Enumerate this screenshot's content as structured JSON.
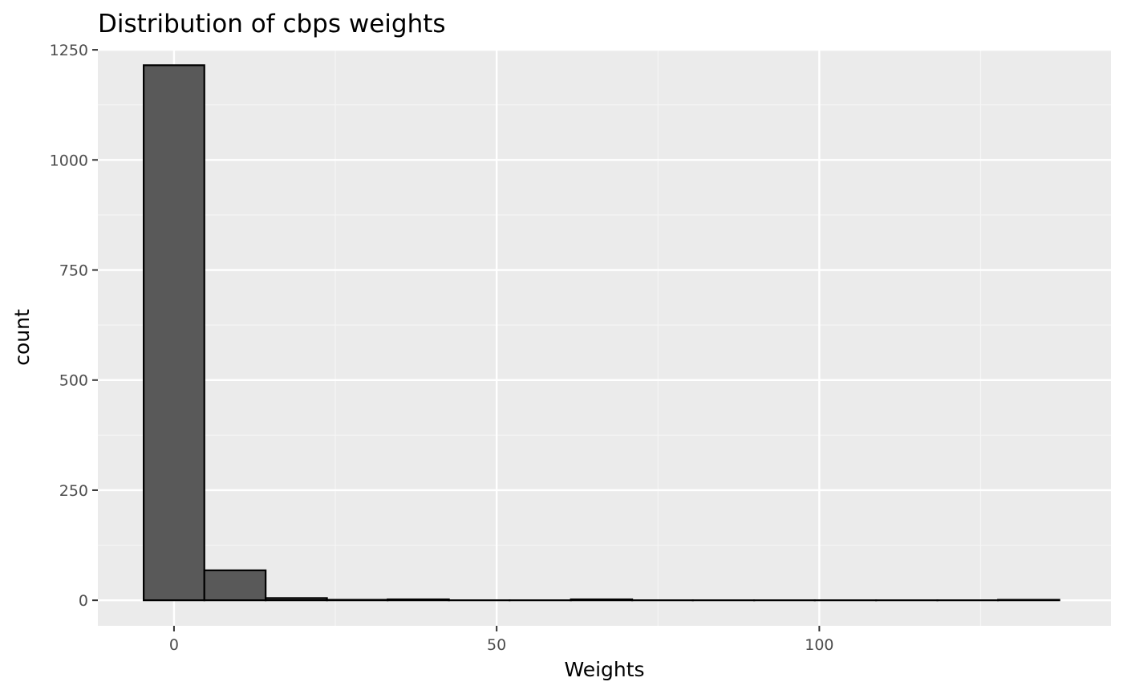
{
  "chart_data": {
    "type": "bar",
    "title": "Distribution of cbps weights",
    "xlabel": "Weights",
    "ylabel": "count",
    "xlim": [
      -11.8,
      145.2
    ],
    "ylim": [
      -58,
      1252
    ],
    "x_ticks": [
      0,
      50,
      100
    ],
    "x_tick_labels": [
      "0",
      "50",
      "100"
    ],
    "y_ticks": [
      0,
      250,
      500,
      750,
      1000,
      1250
    ],
    "y_tick_labels": [
      "0",
      "250",
      "500",
      "750",
      "1000",
      "1250"
    ],
    "bins": [
      {
        "x0": -4.7,
        "x1": 4.7,
        "count": 1215
      },
      {
        "x0": 4.7,
        "x1": 14.2,
        "count": 68
      },
      {
        "x0": 14.2,
        "x1": 23.7,
        "count": 5
      },
      {
        "x0": 23.7,
        "x1": 33.1,
        "count": 1
      },
      {
        "x0": 33.1,
        "x1": 42.6,
        "count": 2
      },
      {
        "x0": 42.6,
        "x1": 52.0,
        "count": 0
      },
      {
        "x0": 52.0,
        "x1": 61.5,
        "count": 0
      },
      {
        "x0": 61.5,
        "x1": 71.0,
        "count": 2
      },
      {
        "x0": 71.0,
        "x1": 80.4,
        "count": 0
      },
      {
        "x0": 80.4,
        "x1": 89.9,
        "count": 0
      },
      {
        "x0": 89.9,
        "x1": 99.3,
        "count": 0
      },
      {
        "x0": 99.3,
        "x1": 108.8,
        "count": 0
      },
      {
        "x0": 108.8,
        "x1": 118.3,
        "count": 0
      },
      {
        "x0": 118.3,
        "x1": 127.7,
        "count": 0
      },
      {
        "x0": 127.7,
        "x1": 137.2,
        "count": 1
      }
    ],
    "grid": true,
    "legend": "none",
    "colors": {
      "panel_background": "#ebebeb",
      "grid_major": "#ffffff",
      "grid_minor": "#f5f5f5",
      "bar_fill": "#595959",
      "bar_outline": "#000000",
      "tick_mark": "#333333"
    }
  }
}
